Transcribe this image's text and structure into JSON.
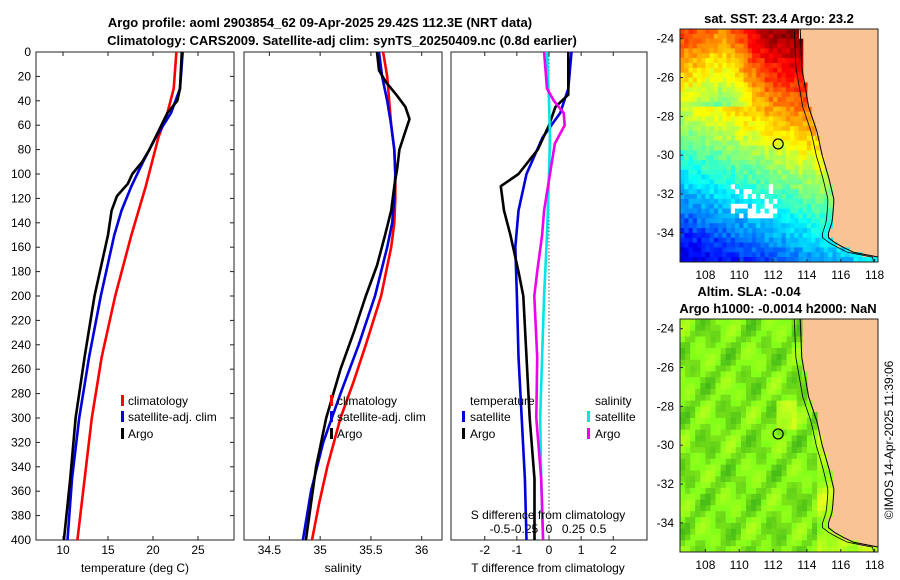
{
  "figure": {
    "title_line1": "Argo profile: aoml 2903854_62 09-Apr-2025 29.42S 112.3E (NRT data)",
    "title_line2": "Climatology: CARS2009. Satellite-adj clim: synTS_20250409.nc (0.8d earlier)",
    "credit": "©IMOS 14-Apr-2025 11:39:06"
  },
  "colors": {
    "climatology": "#ff0000",
    "satellite": "#0000dd",
    "argo": "#000000",
    "sal_satellite": "#00e5e5",
    "sal_argo": "#ee00ee",
    "land": "#f9c393"
  },
  "chart_data": [
    {
      "type": "line",
      "id": "temperature",
      "xlabel": "temperature (deg C)",
      "ylabel": "",
      "xlim": [
        7,
        29
      ],
      "ylim": [
        400,
        0
      ],
      "xticks": [
        10,
        15,
        20,
        25
      ],
      "yticks": [
        0,
        20,
        40,
        60,
        80,
        100,
        120,
        140,
        160,
        180,
        200,
        220,
        240,
        260,
        280,
        300,
        320,
        340,
        360,
        380,
        400
      ],
      "legend": [
        "climatology",
        "satellite-adj. clim",
        "Argo"
      ],
      "series": [
        {
          "name": "climatology",
          "color": "#ff0000",
          "depth": [
            0,
            30,
            50,
            70,
            90,
            110,
            130,
            150,
            200,
            250,
            300,
            350,
            400
          ],
          "values": [
            22.6,
            22.3,
            21.6,
            20.6,
            19.9,
            19.2,
            18.4,
            17.6,
            15.8,
            14.3,
            13.2,
            12.4,
            11.6
          ]
        },
        {
          "name": "satellite-adj. clim",
          "color": "#0000dd",
          "depth": [
            0,
            30,
            50,
            70,
            90,
            110,
            130,
            150,
            200,
            250,
            300,
            350,
            400
          ],
          "values": [
            23.3,
            23.0,
            22.0,
            20.3,
            18.9,
            17.6,
            16.5,
            15.7,
            14.2,
            12.9,
            11.8,
            11.0,
            10.5
          ]
        },
        {
          "name": "Argo",
          "color": "#000000",
          "depth": [
            0,
            30,
            40,
            50,
            65,
            80,
            90,
            100,
            108,
            118,
            130,
            150,
            200,
            250,
            300,
            350,
            400
          ],
          "values": [
            23.2,
            23.0,
            22.7,
            21.6,
            20.6,
            19.6,
            18.8,
            17.7,
            17.2,
            16.0,
            15.4,
            15.0,
            13.5,
            12.4,
            11.4,
            10.8,
            10.1
          ]
        }
      ]
    },
    {
      "type": "line",
      "id": "salinity",
      "xlabel": "salinity",
      "xlim": [
        34.25,
        36.2
      ],
      "ylim": [
        400,
        0
      ],
      "xticks": [
        34.5,
        35,
        35.5,
        36
      ],
      "legend": [
        "climatology",
        "satellite-adj. clim",
        "Argo"
      ],
      "series": [
        {
          "name": "climatology",
          "color": "#ff0000",
          "depth": [
            0,
            20,
            40,
            60,
            80,
            100,
            120,
            140,
            160,
            200,
            240,
            270,
            300,
            340,
            370,
            400
          ],
          "values": [
            35.62,
            35.66,
            35.68,
            35.7,
            35.73,
            35.74,
            35.74,
            35.73,
            35.7,
            35.6,
            35.45,
            35.33,
            35.2,
            35.07,
            34.99,
            34.92
          ]
        },
        {
          "name": "satellite-adj. clim",
          "color": "#0000dd",
          "depth": [
            0,
            20,
            40,
            60,
            80,
            100,
            120,
            140,
            160,
            200,
            240,
            280,
            320,
            360,
            400
          ],
          "values": [
            35.58,
            35.61,
            35.66,
            35.7,
            35.73,
            35.74,
            35.73,
            35.71,
            35.66,
            35.54,
            35.38,
            35.2,
            35.03,
            34.91,
            34.83
          ]
        },
        {
          "name": "Argo",
          "color": "#000000",
          "depth": [
            0,
            15,
            25,
            35,
            45,
            55,
            65,
            80,
            95,
            110,
            130,
            150,
            175,
            200,
            230,
            260,
            300,
            340,
            370,
            400
          ],
          "values": [
            35.56,
            35.58,
            35.65,
            35.75,
            35.84,
            35.88,
            35.84,
            35.78,
            35.76,
            35.73,
            35.7,
            35.64,
            35.56,
            35.45,
            35.33,
            35.2,
            35.06,
            34.96,
            34.91,
            34.86
          ]
        }
      ]
    },
    {
      "type": "line",
      "id": "differences",
      "xlabel": "T difference from climatology",
      "xlabel_top": "S difference from climatology",
      "xlim": [
        -3.05,
        3.05
      ],
      "s_xlim": [
        -1.0,
        1.0
      ],
      "ylim": [
        400,
        0
      ],
      "xticks": [
        -2,
        -1,
        0,
        1,
        2
      ],
      "xticklabels": [
        "-2",
        "-1",
        "0",
        "1",
        "2"
      ],
      "s_xticks": [
        -0.5,
        -0.25,
        0,
        0.25,
        0.5
      ],
      "s_xticklabels": [
        "-0.5",
        "-0.25",
        "0",
        "0.25",
        "0.5"
      ],
      "legend_temperature_heading": "temperature",
      "legend_salinity_heading": "salinity",
      "legend_temperature": [
        "satellite",
        "Argo"
      ],
      "legend_salinity": [
        "satellite",
        "Argo"
      ],
      "series": [
        {
          "name": "T satellite",
          "color": "#0000dd",
          "axis": "T",
          "depth": [
            0,
            30,
            50,
            70,
            100,
            130,
            160,
            200,
            250,
            300,
            350,
            400
          ],
          "values": [
            0.7,
            0.6,
            0.35,
            -0.2,
            -0.7,
            -0.95,
            -1.05,
            -1.0,
            -0.95,
            -0.85,
            -0.75,
            -0.7
          ]
        },
        {
          "name": "T Argo",
          "color": "#000000",
          "axis": "T",
          "depth": [
            0,
            35,
            45,
            60,
            80,
            100,
            110,
            120,
            130,
            150,
            180,
            200,
            250,
            300,
            350,
            400
          ],
          "values": [
            0.6,
            0.6,
            0.2,
            0.0,
            -0.35,
            -0.95,
            -1.5,
            -1.45,
            -1.4,
            -1.2,
            -0.95,
            -0.8,
            -0.7,
            -0.6,
            -0.45,
            -0.45
          ]
        },
        {
          "name": "S satellite",
          "color": "#00e5e5",
          "axis": "S",
          "depth": [
            0,
            20,
            40,
            70,
            100,
            150,
            200,
            250,
            300,
            350,
            400
          ],
          "values": [
            -0.02,
            -0.01,
            0.0,
            0.01,
            0.0,
            -0.02,
            -0.05,
            -0.07,
            -0.09,
            -0.08,
            -0.06
          ]
        },
        {
          "name": "S Argo",
          "color": "#ee00ee",
          "axis": "S",
          "depth": [
            0,
            30,
            40,
            50,
            60,
            75,
            90,
            110,
            130,
            150,
            180,
            200,
            250,
            300,
            350,
            400
          ],
          "values": [
            -0.05,
            -0.02,
            0.05,
            0.15,
            0.16,
            0.06,
            0.03,
            -0.01,
            -0.05,
            -0.07,
            -0.12,
            -0.15,
            -0.12,
            -0.13,
            -0.08,
            -0.06
          ]
        }
      ]
    },
    {
      "type": "heatmap",
      "id": "sst_map",
      "title": "sat. SST: 23.4 Argo: 23.2",
      "xlim": [
        106.5,
        118.2
      ],
      "ylim": [
        -35.5,
        -23.5
      ],
      "xticks": [
        108,
        110,
        112,
        114,
        116,
        118
      ],
      "yticks": [
        -24,
        -26,
        -28,
        -30,
        -32,
        -34
      ],
      "profile_location": [
        112.3,
        -29.42
      ]
    },
    {
      "type": "heatmap",
      "id": "sla_map",
      "title_line1": "Altim. SLA: -0.04",
      "title_line2": "Argo h1000: -0.0014 h2000: NaN",
      "xlim": [
        106.5,
        118.2
      ],
      "ylim": [
        -35.5,
        -23.5
      ],
      "xticks": [
        108,
        110,
        112,
        114,
        116,
        118
      ],
      "yticks": [
        -24,
        -26,
        -28,
        -30,
        -32,
        -34
      ],
      "profile_location": [
        112.3,
        -29.42
      ]
    }
  ]
}
